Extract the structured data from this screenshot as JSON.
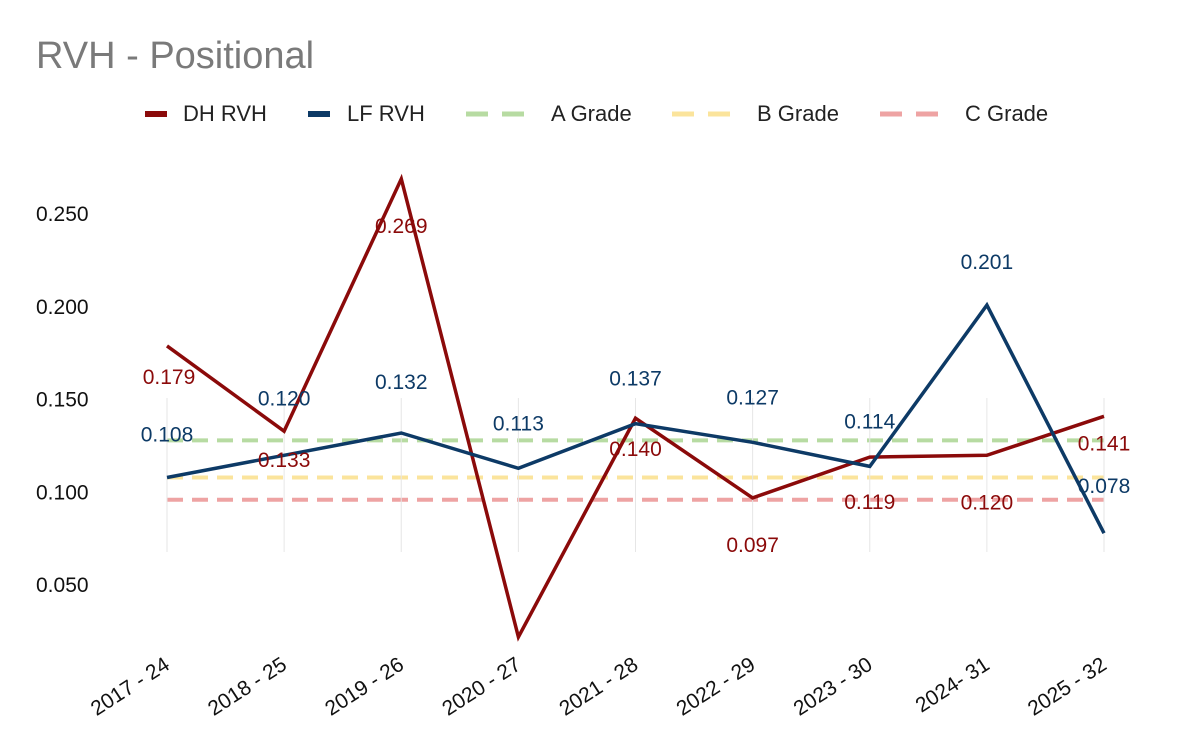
{
  "chart_data": {
    "type": "line",
    "title": "RVH - Positional",
    "xlabel": "",
    "ylabel": "",
    "categories": [
      "2017 - 24",
      "2018 - 25",
      "2019 - 26",
      "2020 - 27",
      "2021 - 28",
      "2022 - 29",
      "2023 - 30",
      "2024- 31",
      "2025 - 32"
    ],
    "ylim": [
      0.015,
      0.29
    ],
    "yticks": [
      0.05,
      0.1,
      0.15,
      0.2,
      0.25
    ],
    "ytick_labels": [
      "0.050",
      "0.100",
      "0.150",
      "0.200",
      "0.250"
    ],
    "series": [
      {
        "name": "DH RVH",
        "color": "#8b0a0a",
        "values": [
          0.179,
          0.133,
          0.269,
          0.022,
          0.14,
          0.097,
          0.119,
          0.12,
          0.141
        ],
        "labels": [
          "0.179",
          "0.133",
          "0.269",
          "",
          "0.140",
          "0.097",
          "0.119",
          "0.120",
          "0.141"
        ]
      },
      {
        "name": "LF RVH",
        "color": "#0d3a66",
        "values": [
          0.108,
          0.12,
          0.132,
          0.113,
          0.137,
          0.127,
          0.114,
          0.201,
          0.078
        ],
        "labels": [
          "0.108",
          "0.120",
          "0.132",
          "0.113",
          "0.137",
          "0.127",
          "0.114",
          "0.201",
          "0.078"
        ]
      }
    ],
    "reference_lines": [
      {
        "name": "A Grade",
        "value": 0.128,
        "color": "#b7dba2"
      },
      {
        "name": "B Grade",
        "value": 0.108,
        "color": "#fbe49c"
      },
      {
        "name": "C Grade",
        "value": 0.096,
        "color": "#eea3a3"
      }
    ],
    "legend": [
      "DH RVH",
      "LF RVH",
      "A Grade",
      "B Grade",
      "C Grade"
    ],
    "legend_position": "top",
    "grid": false
  }
}
